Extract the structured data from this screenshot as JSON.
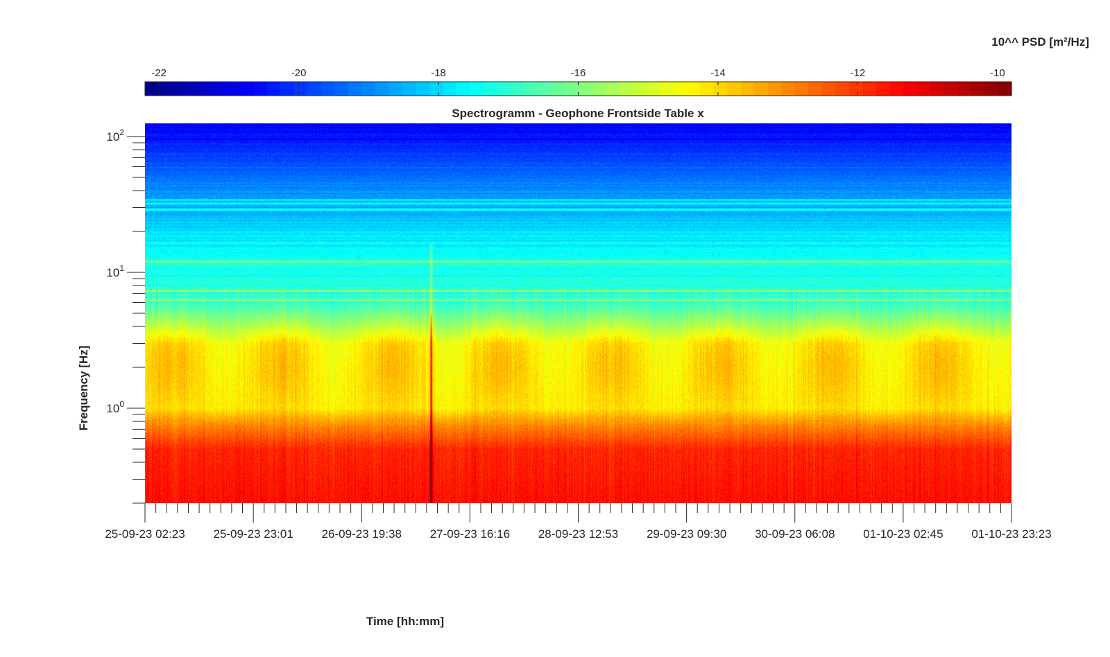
{
  "chart_data": {
    "type": "heatmap",
    "title": "Spectrogramm - Geophone Frontside Table x",
    "xlabel": "Time [hh:mm]",
    "ylabel": "Frequency [Hz]",
    "y_scale": "log",
    "ylim": [
      0.2,
      125
    ],
    "x_tick_labels": [
      "25-09-23 02:23",
      "25-09-23 23:01",
      "26-09-23 19:38",
      "27-09-23 16:16",
      "28-09-23 12:53",
      "29-09-23 09:30",
      "30-09-23 06:08",
      "01-10-23 02:45",
      "01-10-23 23:23"
    ],
    "y_ticks": [
      {
        "base": "10",
        "exp": "0",
        "value": 1
      },
      {
        "base": "10",
        "exp": "1",
        "value": 10
      },
      {
        "base": "10",
        "exp": "2",
        "value": 100
      }
    ],
    "colorbar": {
      "label": "10^^ PSD [m²/Hz]",
      "range": [
        -22.2,
        -9.8
      ],
      "ticks": [
        -22,
        -20,
        -18,
        -16,
        -14,
        -12,
        -10
      ],
      "tick_labels": [
        "-22",
        "-20",
        "-18",
        "-16",
        "-14",
        "-12",
        "-10"
      ],
      "colormap": "jet",
      "placement": "top"
    },
    "profile": {
      "description_levels_log10psd": [
        {
          "freq_hz": 0.2,
          "value": -11.5
        },
        {
          "freq_hz": 0.5,
          "value": -11.8
        },
        {
          "freq_hz": 0.75,
          "value": -13.0
        },
        {
          "freq_hz": 1.0,
          "value": -14.3
        },
        {
          "freq_hz": 3.0,
          "value": -14.6
        },
        {
          "freq_hz": 6.0,
          "value": -17.0
        },
        {
          "freq_hz": 12.0,
          "value": -17.3
        },
        {
          "freq_hz": 30.0,
          "value": -18.5
        },
        {
          "freq_hz": 125.0,
          "value": -20.8
        }
      ],
      "lines_hz": [
        6.3,
        7.3,
        12.0,
        29.0,
        32.0,
        34.0
      ],
      "transient_event_x_fraction": 0.33
    }
  }
}
